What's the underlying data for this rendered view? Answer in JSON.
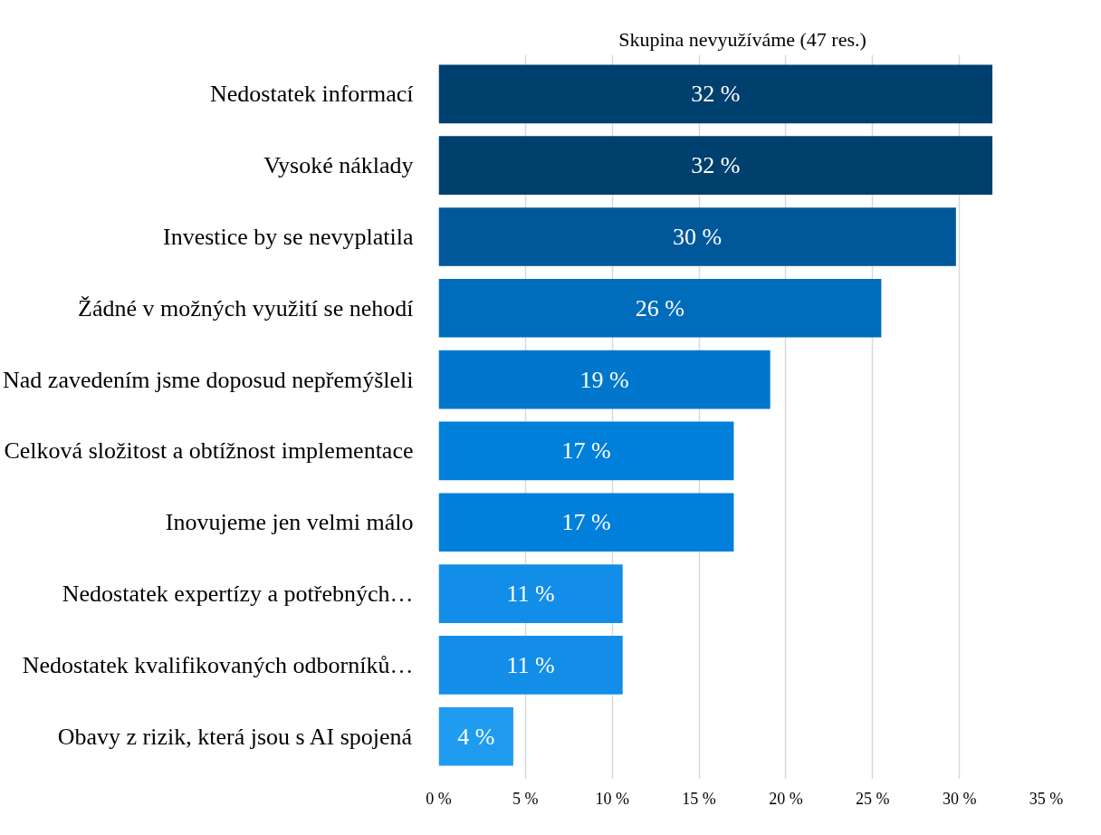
{
  "chart_data": {
    "type": "bar",
    "orientation": "horizontal",
    "title": "Skupina nevyužíváme (47 res.)",
    "categories": [
      "Nedostatek informací",
      "Vysoké náklady",
      "Investice by se nevyplatila",
      "Žádné v možných využití se nehodí",
      "Nad zavedením jsme doposud nepřemýšleli",
      "Celková složitost a obtížnost implementace",
      "Inovujeme jen velmi málo",
      "Nedostatek expertízy a potřebných…",
      "Nedostatek kvalifikovaných odborníků…",
      "Obavy z rizik, která jsou s AI spojená"
    ],
    "values": [
      31.9,
      31.9,
      29.8,
      25.5,
      19.1,
      17.0,
      17.0,
      10.6,
      10.6,
      4.3
    ],
    "value_labels": [
      "32 %",
      "32 %",
      "30 %",
      "26 %",
      "19 %",
      "17 %",
      "17 %",
      "11 %",
      "11 %",
      "4 %"
    ],
    "colors": [
      "#00406f",
      "#00406f",
      "#00589a",
      "#006cbc",
      "#0077cc",
      "#0080da",
      "#0080da",
      "#138ee8",
      "#138ee8",
      "#1f9bef"
    ],
    "xlim": [
      0,
      35
    ],
    "xticks": [
      {
        "value": 0,
        "label": "0 %"
      },
      {
        "value": 5,
        "label": "5 %"
      },
      {
        "value": 10,
        "label": "10 %"
      },
      {
        "value": 15,
        "label": "15 %"
      },
      {
        "value": 20,
        "label": "20 %"
      },
      {
        "value": 25,
        "label": "25 %"
      },
      {
        "value": 30,
        "label": "30 %"
      },
      {
        "value": 35,
        "label": "35 %"
      }
    ],
    "grid": "x"
  }
}
